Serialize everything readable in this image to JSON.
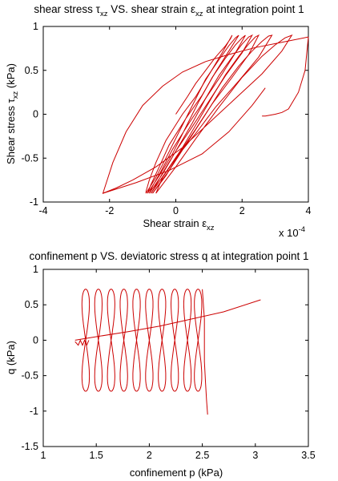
{
  "chart_data": [
    {
      "type": "line",
      "title": {
        "main": "shear stress ",
        "tau": "τ",
        "tau_sub": "xz",
        "mid": " VS. shear strain ",
        "eps": "ε",
        "eps_sub": "xz",
        "tail": " at integration point 1"
      },
      "xlabel": {
        "text": "Shear strain ",
        "eps": "ε",
        "sub": "xz"
      },
      "ylabel": {
        "text": "Shear stress ",
        "tau": "τ",
        "sub": "xz",
        "unit": " (kPa)"
      },
      "x_multiplier": {
        "text": "x 10",
        "exp": "-4"
      },
      "xlim": [
        -4,
        4
      ],
      "ylim": [
        -1,
        1
      ],
      "x_ticks": [
        -4,
        -2,
        0,
        2,
        4
      ],
      "y_ticks": [
        -1,
        -0.5,
        0,
        0.5,
        1
      ],
      "x_tick_labels": [
        "-4",
        "-2",
        "0",
        "2",
        "4"
      ],
      "y_tick_labels": [
        "-1",
        "-0.5",
        "0",
        "0.5",
        "1"
      ],
      "grid": false,
      "line_color": "#cc0000",
      "series": [
        {
          "points": [
            [
              0,
              0
            ],
            [
              0.35,
              0.2
            ],
            [
              0.6,
              0.35
            ],
            [
              0.9,
              0.5
            ],
            [
              1.2,
              0.65
            ],
            [
              1.5,
              0.78
            ],
            [
              1.65,
              0.86
            ],
            [
              1.7,
              0.9
            ],
            [
              1.4,
              0.7
            ],
            [
              1.0,
              0.45
            ],
            [
              0.6,
              0.2
            ],
            [
              0.2,
              0
            ],
            [
              -0.3,
              -0.3
            ],
            [
              -0.6,
              -0.55
            ],
            [
              -0.8,
              -0.75
            ],
            [
              -0.9,
              -0.88
            ],
            [
              -0.9,
              -0.9
            ]
          ]
        },
        {
          "points": [
            [
              -0.9,
              -0.9
            ],
            [
              -0.6,
              -0.72
            ],
            [
              -0.3,
              -0.5
            ],
            [
              0.1,
              -0.2
            ],
            [
              0.5,
              0.1
            ],
            [
              0.9,
              0.4
            ],
            [
              1.3,
              0.62
            ],
            [
              1.6,
              0.78
            ],
            [
              1.8,
              0.87
            ],
            [
              1.9,
              0.9
            ],
            [
              1.6,
              0.72
            ],
            [
              1.2,
              0.48
            ],
            [
              0.8,
              0.22
            ],
            [
              0.3,
              -0.05
            ],
            [
              -0.2,
              -0.35
            ],
            [
              -0.5,
              -0.6
            ],
            [
              -0.75,
              -0.8
            ],
            [
              -0.85,
              -0.9
            ]
          ]
        },
        {
          "points": [
            [
              -0.85,
              -0.9
            ],
            [
              -0.5,
              -0.7
            ],
            [
              -0.1,
              -0.45
            ],
            [
              0.3,
              -0.15
            ],
            [
              0.7,
              0.15
            ],
            [
              1.1,
              0.42
            ],
            [
              1.5,
              0.64
            ],
            [
              1.8,
              0.79
            ],
            [
              2.0,
              0.87
            ],
            [
              2.1,
              0.9
            ],
            [
              1.8,
              0.7
            ],
            [
              1.4,
              0.46
            ],
            [
              0.9,
              0.18
            ],
            [
              0.4,
              -0.1
            ],
            [
              -0.1,
              -0.4
            ],
            [
              -0.45,
              -0.65
            ],
            [
              -0.7,
              -0.82
            ],
            [
              -0.8,
              -0.9
            ]
          ]
        },
        {
          "points": [
            [
              -0.8,
              -0.9
            ],
            [
              -0.4,
              -0.68
            ],
            [
              0.0,
              -0.42
            ],
            [
              0.5,
              -0.1
            ],
            [
              0.9,
              0.18
            ],
            [
              1.3,
              0.44
            ],
            [
              1.7,
              0.65
            ],
            [
              2.0,
              0.8
            ],
            [
              2.2,
              0.88
            ],
            [
              2.3,
              0.9
            ],
            [
              2.0,
              0.7
            ],
            [
              1.5,
              0.44
            ],
            [
              1.0,
              0.15
            ],
            [
              0.5,
              -0.14
            ],
            [
              0.0,
              -0.42
            ],
            [
              -0.4,
              -0.67
            ],
            [
              -0.65,
              -0.84
            ],
            [
              -0.75,
              -0.9
            ]
          ]
        },
        {
          "points": [
            [
              -0.75,
              -0.9
            ],
            [
              -0.3,
              -0.66
            ],
            [
              0.2,
              -0.38
            ],
            [
              0.7,
              -0.06
            ],
            [
              1.1,
              0.2
            ],
            [
              1.5,
              0.45
            ],
            [
              1.9,
              0.66
            ],
            [
              2.2,
              0.8
            ],
            [
              2.4,
              0.88
            ],
            [
              2.5,
              0.9
            ],
            [
              2.2,
              0.68
            ],
            [
              1.7,
              0.42
            ],
            [
              1.1,
              0.12
            ],
            [
              0.6,
              -0.17
            ],
            [
              0.1,
              -0.45
            ],
            [
              -0.3,
              -0.7
            ],
            [
              -0.6,
              -0.85
            ],
            [
              -0.7,
              -0.9
            ]
          ]
        },
        {
          "points": [
            [
              -0.7,
              -0.9
            ],
            [
              -0.2,
              -0.64
            ],
            [
              0.3,
              -0.35
            ],
            [
              0.9,
              0.0
            ],
            [
              1.4,
              0.3
            ],
            [
              1.9,
              0.55
            ],
            [
              2.3,
              0.72
            ],
            [
              2.6,
              0.83
            ],
            [
              2.8,
              0.89
            ],
            [
              2.9,
              0.9
            ],
            [
              2.5,
              0.65
            ],
            [
              1.9,
              0.38
            ],
            [
              1.2,
              0.08
            ],
            [
              0.6,
              -0.22
            ],
            [
              0.0,
              -0.5
            ],
            [
              -0.4,
              -0.72
            ],
            [
              -0.6,
              -0.9
            ]
          ]
        },
        {
          "points": [
            [
              -0.6,
              -0.9
            ],
            [
              0.0,
              -0.6
            ],
            [
              0.6,
              -0.28
            ],
            [
              1.3,
              0.08
            ],
            [
              2.0,
              0.42
            ],
            [
              2.6,
              0.66
            ],
            [
              3.0,
              0.79
            ],
            [
              3.3,
              0.87
            ],
            [
              3.5,
              0.9
            ],
            [
              3.2,
              0.72
            ],
            [
              2.6,
              0.46
            ],
            [
              1.8,
              0.18
            ],
            [
              1.0,
              -0.1
            ],
            [
              0.2,
              -0.38
            ],
            [
              -0.6,
              -0.6
            ],
            [
              -1.3,
              -0.75
            ],
            [
              -1.8,
              -0.84
            ],
            [
              -2.2,
              -0.9
            ],
            [
              -1.9,
              -0.55
            ],
            [
              -1.5,
              -0.2
            ],
            [
              -1.0,
              0.1
            ],
            [
              -0.4,
              0.32
            ],
            [
              0.2,
              0.48
            ],
            [
              0.9,
              0.6
            ],
            [
              1.6,
              0.68
            ],
            [
              2.4,
              0.76
            ],
            [
              3.2,
              0.82
            ],
            [
              4.0,
              0.88
            ]
          ]
        },
        {
          "points": [
            [
              -2.2,
              -0.9
            ],
            [
              -1.2,
              -0.78
            ],
            [
              -0.2,
              -0.64
            ],
            [
              0.8,
              -0.45
            ],
            [
              1.6,
              -0.2
            ],
            [
              2.3,
              0.1
            ],
            [
              2.7,
              0.3
            ]
          ]
        },
        {
          "points": [
            [
              4.0,
              0.88
            ],
            [
              3.9,
              0.5
            ],
            [
              3.7,
              0.25
            ],
            [
              3.4,
              0.06
            ],
            [
              3.2,
              0.02
            ],
            [
              3.0,
              0.0
            ],
            [
              2.7,
              -0.02
            ],
            [
              2.6,
              -0.02
            ]
          ]
        }
      ]
    },
    {
      "type": "line",
      "title": "confinement p VS. deviatoric stress q at integration point 1",
      "xlabel": "confinement p (kPa)",
      "ylabel": "q (kPa)",
      "xlim": [
        1,
        3.5
      ],
      "ylim": [
        -1.5,
        1
      ],
      "x_ticks": [
        1,
        1.5,
        2,
        2.5,
        3,
        3.5
      ],
      "y_ticks": [
        -1.5,
        -1,
        -0.5,
        0,
        0.5,
        1
      ],
      "x_tick_labels": [
        "1",
        "1.5",
        "2",
        "2.5",
        "3",
        "3.5"
      ],
      "y_tick_labels": [
        "-1.5",
        "-1",
        "-0.5",
        "0",
        "0.5",
        "1"
      ],
      "grid": false,
      "line_color": "#cc0000",
      "loop_centers": [
        1.4,
        1.52,
        1.64,
        1.76,
        1.88,
        2.0,
        2.12,
        2.24,
        2.36,
        2.46
      ],
      "loop_amplitude": {
        "top": 0.72,
        "bottom": -0.72
      },
      "series": [
        {
          "points": [
            [
              1.3,
              0
            ],
            [
              1.5,
              0.05
            ],
            [
              1.8,
              0.12
            ],
            [
              2.1,
              0.2
            ],
            [
              2.4,
              0.3
            ],
            [
              2.7,
              0.4
            ],
            [
              3.05,
              0.57
            ]
          ]
        },
        {
          "points": [
            [
              2.5,
              0.72
            ],
            [
              2.52,
              0.3
            ],
            [
              2.52,
              -0.3
            ],
            [
              2.53,
              -0.6
            ],
            [
              2.54,
              -0.85
            ],
            [
              2.55,
              -1.05
            ]
          ]
        },
        {
          "points": [
            [
              1.3,
              -0.02
            ],
            [
              1.33,
              -0.07
            ],
            [
              1.35,
              0.0
            ],
            [
              1.37,
              -0.07
            ],
            [
              1.39,
              0.0
            ],
            [
              1.41,
              -0.07
            ],
            [
              1.43,
              0.0
            ]
          ]
        }
      ]
    }
  ]
}
